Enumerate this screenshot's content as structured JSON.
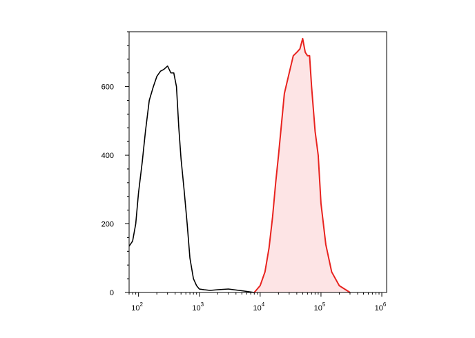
{
  "chart_data": {
    "type": "area",
    "title": "",
    "xlabel": "",
    "ylabel": "",
    "x_scale": "log",
    "xlim": [
      70,
      1200000
    ],
    "ylim": [
      0,
      760
    ],
    "grid": false,
    "legend": "none",
    "x_ticks": [
      {
        "value": 100,
        "base": "10",
        "exp": "2"
      },
      {
        "value": 1000,
        "base": "10",
        "exp": "3"
      },
      {
        "value": 10000,
        "base": "10",
        "exp": "4"
      },
      {
        "value": 100000,
        "base": "10",
        "exp": "5"
      },
      {
        "value": 1000000,
        "base": "10",
        "exp": "6"
      }
    ],
    "y_ticks": [
      {
        "value": 0,
        "label": "0"
      },
      {
        "value": 200,
        "label": "200"
      },
      {
        "value": 400,
        "label": "400"
      },
      {
        "value": 600,
        "label": "600"
      }
    ],
    "series": [
      {
        "color": "#000000",
        "fill": "none",
        "x": [
          70,
          80,
          90,
          100,
          115,
          130,
          150,
          175,
          200,
          230,
          260,
          300,
          340,
          380,
          420,
          460,
          500,
          560,
          630,
          700,
          800,
          900,
          1000,
          1200,
          1500,
          2000,
          3000,
          5000,
          8000
        ],
        "y": [
          135,
          150,
          200,
          290,
          380,
          470,
          560,
          600,
          630,
          645,
          650,
          660,
          640,
          640,
          600,
          480,
          390,
          300,
          200,
          100,
          40,
          20,
          10,
          8,
          6,
          8,
          10,
          5,
          0
        ]
      },
      {
        "color": "#e8231f",
        "fill": "#fde4e5",
        "x": [
          8000,
          10000,
          12000,
          14000,
          16000,
          18000,
          20000,
          25000,
          30000,
          35000,
          40000,
          45000,
          50000,
          55000,
          60000,
          65000,
          70000,
          80000,
          90000,
          100000,
          120000,
          150000,
          200000,
          300000
        ],
        "y": [
          0,
          20,
          60,
          130,
          220,
          320,
          400,
          580,
          640,
          690,
          700,
          710,
          740,
          700,
          690,
          690,
          600,
          470,
          400,
          260,
          140,
          60,
          20,
          0
        ]
      }
    ]
  }
}
